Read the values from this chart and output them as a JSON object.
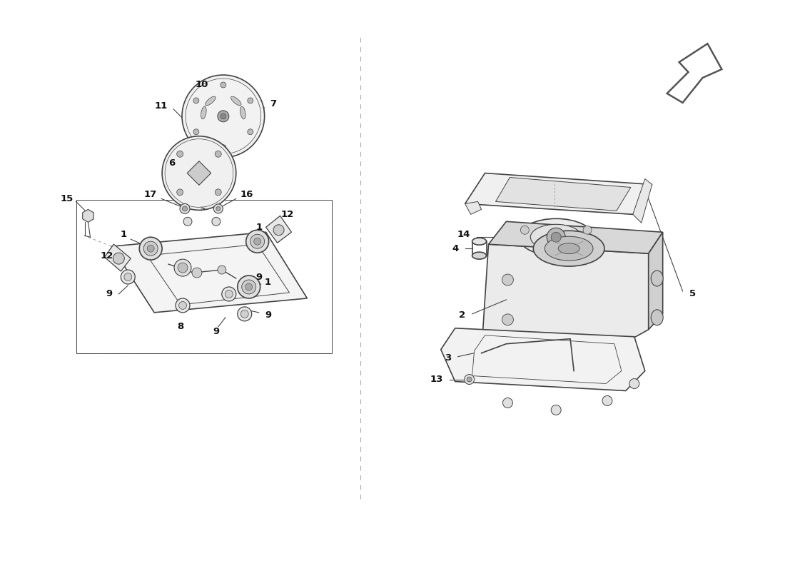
{
  "bg_color": "#ffffff",
  "line_color": "#444444",
  "label_color": "#111111",
  "fig_width": 11.0,
  "fig_height": 8.0,
  "dpi": 100
}
